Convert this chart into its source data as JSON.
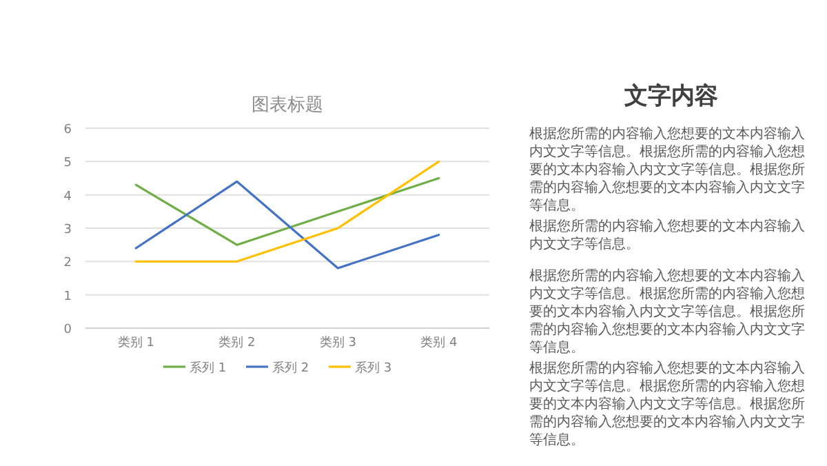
{
  "chart_data": [
    {
      "type": "line",
      "title": "图表标题",
      "categories": [
        "类别 1",
        "类别 2",
        "类别 3",
        "类别 4"
      ],
      "series": [
        {
          "name": "系列 1",
          "color": "#70ad47",
          "values": [
            4.3,
            2.5,
            3.5,
            4.5
          ]
        },
        {
          "name": "系列 2",
          "color": "#4472c4",
          "values": [
            2.4,
            4.4,
            1.8,
            2.8
          ]
        },
        {
          "name": "系列 3",
          "color": "#ffc000",
          "values": [
            2,
            2,
            3,
            5
          ]
        }
      ],
      "ylim": [
        0,
        6
      ],
      "yticks": [
        0,
        1,
        2,
        3,
        4,
        5,
        6
      ],
      "grid": "y",
      "legend": "bottom",
      "marker": "none",
      "line_style": "solid"
    },
    {
      "type": "other",
      "title": "文字内容",
      "annotations": [
        "根据您所需的内容输入您想要的文本内容输入内文文字等信息。根据您所需的内容输入您想要的文本内容输入内文文字等信息。根据您所需的内容输入您想要的文本内容输入内文文字等信息。",
        "根据您所需的内容输入您想要的文本内容输入内文文字等信息。",
        "根据您所需的内容输入您想要的文本内容输入内文文字等信息。根据您所需的内容输入您想要的文本内容输入内文文字等信息。根据您所需的内容输入您想要的文本内容输入内文文字等信息。",
        "根据您所需的内容输入您想要的文本内容输入内文文字等信息。根据您所需的内容输入您想要的文本内容输入内文文字等信息。根据您所需的内容输入您想要的文本内容输入内文文字等信息。"
      ]
    }
  ]
}
